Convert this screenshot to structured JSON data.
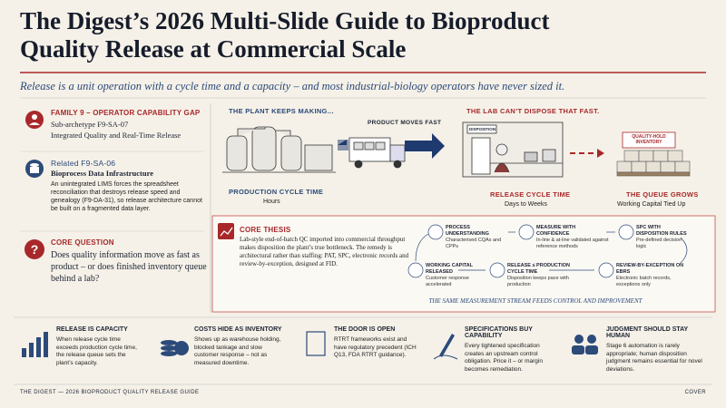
{
  "header": {
    "title": "The Digest’s 2026 Multi-Slide Guide to Bioproduct Quality Release at Commercial Scale",
    "subtitle": "Release is a unit operation with a cycle time and a capacity – and most industrial-biology operators have never sized it."
  },
  "sidebar": {
    "family": {
      "heading": "FAMILY 9 – OPERATOR CAPABILITY GAP",
      "line1": "Sub-archetype F9-SA-07",
      "line2": "Integrated Quality and Real-Time Release"
    },
    "related": {
      "heading": "Related F9-SA-06",
      "name": "Bioprocess Data Infrastructure",
      "text": "An unintegrated LIMS forces the spreadsheet reconciliation that destroys release speed and genealogy (F9-DA-31), so release architecture cannot be built on a fragmented data layer."
    },
    "question": {
      "heading": "CORE QUESTION",
      "text": "Does quality information move as fast as product – or does finished inventory queue behind a lab?"
    }
  },
  "diagram": {
    "plant": "THE PLANT KEEPS MAKING...",
    "production_label": "PRODUCTION CYCLE TIME",
    "production_value": "Hours",
    "moves": "PRODUCT MOVES FAST",
    "lab": "THE LAB CAN’T DISPOSE THAT FAST.",
    "sign": "DISPOSITION",
    "release_label": "RELEASE CYCLE TIME",
    "release_value": "Days to Weeks",
    "hold": "QUALITY-HOLD INVENTORY",
    "queue": "THE QUEUE GROWS",
    "queue_value": "Working Capital Tied Up"
  },
  "thesis": {
    "heading": "CORE THESIS",
    "text": "Lab-style end-of-batch QC imported into commercial throughput makes disposition the plant’s true bottleneck. The remedy is architectural rather than staffing: PAT, SPC, electronic records and review-by-exception, designed at FID.",
    "nodes": [
      {
        "heading": "PROCESS UNDERSTANDING",
        "text": "Characterised CQAs and CPPs"
      },
      {
        "heading": "MEASURE WITH CONFIDENCE",
        "text": "In-line & at-line validated against reference methods"
      },
      {
        "heading": "SPC WITH DISPOSITION RULES",
        "text": "Pre-defined decision logic"
      },
      {
        "heading": "REVIEW-BY-EXCEPTION ON EBRS",
        "text": "Electronic batch records, exceptions only"
      },
      {
        "heading": "RELEASE ≤ PRODUCTION CYCLE TIME",
        "text": "Disposition keeps pace with production"
      },
      {
        "heading": "WORKING CAPITAL RELEASED",
        "text": "Customer response accelerated"
      }
    ],
    "footer": "THE SAME MEASUREMENT STREAM FEEDS CONTROL AND IMPROVEMENT"
  },
  "cards": [
    {
      "heading": "RELEASE IS CAPACITY",
      "text": "When release cycle time exceeds production cycle time, the release queue sets the plant’s capacity."
    },
    {
      "heading": "COSTS HIDE AS INVENTORY",
      "text": "Shows up as warehouse holding, blocked tankage and slow customer response – not as measured downtime."
    },
    {
      "heading": "THE DOOR IS OPEN",
      "text": "RTRT frameworks exist and have regulatory precedent (ICH Q13, FDA RTRT guidance)."
    },
    {
      "heading": "SPECIFICATIONS BUY CAPABILITY",
      "text": "Every tightened specification creates an upstream control obligation. Price it – or margin becomes remediation."
    },
    {
      "heading": "JUDGMENT SHOULD STAY HUMAN",
      "text": "Stage 6 automation is rarely appropriate; human disposition judgment remains essential for novel deviations."
    }
  ],
  "footer": {
    "left": "THE DIGEST — 2026 BIOPRODUCT QUALITY RELEASE GUIDE",
    "right": "COVER"
  }
}
